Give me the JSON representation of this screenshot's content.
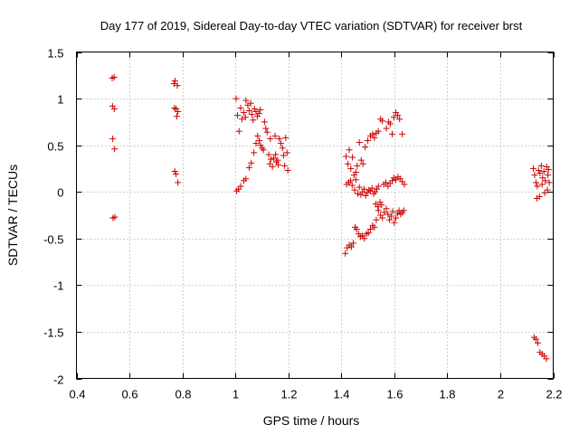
{
  "chart_data": {
    "type": "scatter",
    "title": "Day 177 of 2019, Sidereal Day-to-day VTEC variation (SDTVAR) for receiver brst",
    "xlabel": "GPS time / hours",
    "ylabel": "SDTVAR / TECUs",
    "xlim": [
      0.4,
      2.2
    ],
    "ylim": [
      -2,
      1.5
    ],
    "xticks": [
      0.4,
      0.6,
      0.8,
      1.0,
      1.2,
      1.4,
      1.6,
      1.8,
      2.0,
      2.2
    ],
    "xtick_labels": [
      "0.4",
      "0.6",
      "0.8",
      "1",
      "1.2",
      "1.4",
      "1.6",
      "1.8",
      "2",
      "2.2"
    ],
    "yticks": [
      -2,
      -1.5,
      -1,
      -0.5,
      0,
      0.5,
      1,
      1.5
    ],
    "ytick_labels": [
      "-2",
      "-1.5",
      "-1",
      "-0.5",
      "0",
      "0.5",
      "1",
      "1.5"
    ],
    "grid": true,
    "marker": "+",
    "color": "#cc0000",
    "series": [
      {
        "name": "SDTVAR",
        "points": [
          [
            0.535,
            1.22
          ],
          [
            0.542,
            1.23
          ],
          [
            0.536,
            0.92
          ],
          [
            0.543,
            0.89
          ],
          [
            0.537,
            0.57
          ],
          [
            0.544,
            0.46
          ],
          [
            0.538,
            -0.28
          ],
          [
            0.545,
            -0.27
          ],
          [
            0.768,
            1.16
          ],
          [
            0.772,
            1.19
          ],
          [
            0.781,
            1.14
          ],
          [
            0.77,
            0.9
          ],
          [
            0.776,
            0.89
          ],
          [
            0.783,
            0.86
          ],
          [
            0.779,
            0.81
          ],
          [
            0.771,
            0.22
          ],
          [
            0.776,
            0.19
          ],
          [
            0.783,
            0.1
          ],
          [
            1.003,
            1.0
          ],
          [
            1.008,
            0.82
          ],
          [
            1.014,
            0.65
          ],
          [
            1.02,
            0.9
          ],
          [
            1.025,
            0.78
          ],
          [
            1.032,
            0.85
          ],
          [
            1.038,
            0.8
          ],
          [
            1.04,
            0.98
          ],
          [
            1.047,
            0.93
          ],
          [
            1.052,
            0.87
          ],
          [
            1.058,
            0.95
          ],
          [
            1.062,
            0.83
          ],
          [
            1.067,
            0.77
          ],
          [
            1.072,
            0.89
          ],
          [
            1.078,
            0.86
          ],
          [
            1.083,
            0.81
          ],
          [
            1.089,
            0.84
          ],
          [
            1.094,
            0.88
          ],
          [
            1.07,
            0.42
          ],
          [
            1.078,
            0.52
          ],
          [
            1.084,
            0.6
          ],
          [
            1.09,
            0.55
          ],
          [
            1.095,
            0.5
          ],
          [
            1.101,
            0.47
          ],
          [
            1.106,
            0.45
          ],
          [
            1.11,
            0.75
          ],
          [
            1.115,
            0.68
          ],
          [
            1.12,
            0.64
          ],
          [
            1.126,
            0.4
          ],
          [
            1.13,
            0.3
          ],
          [
            1.134,
            0.35
          ],
          [
            1.14,
            0.27
          ],
          [
            1.145,
            0.36
          ],
          [
            1.15,
            0.6
          ],
          [
            1.155,
            0.32
          ],
          [
            1.16,
            0.34
          ],
          [
            1.166,
            0.57
          ],
          [
            1.172,
            0.52
          ],
          [
            1.178,
            0.47
          ],
          [
            1.182,
            0.39
          ],
          [
            1.186,
            0.28
          ],
          [
            1.19,
            0.58
          ],
          [
            1.195,
            0.42
          ],
          [
            1.198,
            0.23
          ],
          [
            1.162,
            0.29
          ],
          [
            1.152,
            0.4
          ],
          [
            1.132,
            0.57
          ],
          [
            1.005,
            0.01
          ],
          [
            1.012,
            0.03
          ],
          [
            1.02,
            0.06
          ],
          [
            1.032,
            0.12
          ],
          [
            1.04,
            0.14
          ],
          [
            1.052,
            0.26
          ],
          [
            1.06,
            0.31
          ],
          [
            1.415,
            -0.66
          ],
          [
            1.422,
            -0.6
          ],
          [
            1.43,
            -0.57
          ],
          [
            1.438,
            -0.59
          ],
          [
            1.445,
            -0.55
          ],
          [
            1.452,
            -0.38
          ],
          [
            1.458,
            -0.4
          ],
          [
            1.465,
            -0.45
          ],
          [
            1.472,
            -0.48
          ],
          [
            1.48,
            -0.47
          ],
          [
            1.487,
            -0.5
          ],
          [
            1.495,
            -0.45
          ],
          [
            1.502,
            -0.44
          ],
          [
            1.51,
            -0.4
          ],
          [
            1.518,
            -0.36
          ],
          [
            1.525,
            -0.38
          ],
          [
            1.532,
            -0.3
          ],
          [
            1.418,
            0.38
          ],
          [
            1.425,
            0.3
          ],
          [
            1.43,
            0.45
          ],
          [
            1.436,
            0.25
          ],
          [
            1.442,
            0.37
          ],
          [
            1.448,
            0.18
          ],
          [
            1.455,
            0.21
          ],
          [
            1.46,
            0.28
          ],
          [
            1.468,
            0.53
          ],
          [
            1.475,
            0.34
          ],
          [
            1.482,
            0.3
          ],
          [
            1.49,
            0.48
          ],
          [
            1.42,
            0.08
          ],
          [
            1.428,
            0.1
          ],
          [
            1.435,
            0.12
          ],
          [
            1.441,
            0.07
          ],
          [
            1.45,
            0.02
          ],
          [
            1.455,
            0.13
          ],
          [
            1.462,
            -0.02
          ],
          [
            1.468,
            0.05
          ],
          [
            1.474,
            -0.03
          ],
          [
            1.48,
            0.0
          ],
          [
            1.486,
            0.03
          ],
          [
            1.492,
            -0.04
          ],
          [
            1.498,
            -0.01
          ],
          [
            1.504,
            0.02
          ],
          [
            1.51,
            0.01
          ],
          [
            1.516,
            0.04
          ],
          [
            1.522,
            -0.02
          ],
          [
            1.528,
            0.0
          ],
          [
            1.534,
            0.03
          ],
          [
            1.54,
            0.06
          ],
          [
            1.5,
            0.55
          ],
          [
            1.51,
            0.6
          ],
          [
            1.518,
            0.62
          ],
          [
            1.525,
            0.58
          ],
          [
            1.532,
            0.63
          ],
          [
            1.54,
            0.65
          ],
          [
            1.548,
            0.78
          ],
          [
            1.555,
            0.76
          ],
          [
            1.57,
            0.68
          ],
          [
            1.578,
            0.75
          ],
          [
            1.585,
            0.73
          ],
          [
            1.592,
            0.62
          ],
          [
            1.598,
            0.8
          ],
          [
            1.606,
            0.85
          ],
          [
            1.613,
            0.82
          ],
          [
            1.62,
            0.78
          ],
          [
            1.63,
            0.62
          ],
          [
            1.54,
            -0.2
          ],
          [
            1.548,
            -0.25
          ],
          [
            1.555,
            -0.28
          ],
          [
            1.562,
            -0.22
          ],
          [
            1.57,
            -0.18
          ],
          [
            1.576,
            -0.24
          ],
          [
            1.582,
            -0.3
          ],
          [
            1.588,
            -0.26
          ],
          [
            1.594,
            -0.21
          ],
          [
            1.6,
            -0.33
          ],
          [
            1.606,
            -0.28
          ],
          [
            1.612,
            -0.23
          ],
          [
            1.618,
            -0.2
          ],
          [
            1.624,
            -0.24
          ],
          [
            1.63,
            -0.22
          ],
          [
            1.636,
            -0.2
          ],
          [
            1.53,
            -0.13
          ],
          [
            1.538,
            -0.16
          ],
          [
            1.546,
            -0.11
          ],
          [
            1.552,
            -0.14
          ],
          [
            1.56,
            0.08
          ],
          [
            1.568,
            0.1
          ],
          [
            1.576,
            0.06
          ],
          [
            1.584,
            0.09
          ],
          [
            1.592,
            0.12
          ],
          [
            1.598,
            0.15
          ],
          [
            1.606,
            0.13
          ],
          [
            1.614,
            0.16
          ],
          [
            1.622,
            0.14
          ],
          [
            1.63,
            0.11
          ],
          [
            1.638,
            0.08
          ],
          [
            2.125,
            0.25
          ],
          [
            2.13,
            0.18
          ],
          [
            2.135,
            0.1
          ],
          [
            2.14,
            0.06
          ],
          [
            2.145,
            0.23
          ],
          [
            2.15,
            0.2
          ],
          [
            2.155,
            0.28
          ],
          [
            2.16,
            0.15
          ],
          [
            2.165,
            0.22
          ],
          [
            2.17,
            0.12
          ],
          [
            2.175,
            0.27
          ],
          [
            2.18,
            0.18
          ],
          [
            2.185,
            0.1
          ],
          [
            2.178,
            0.02
          ],
          [
            2.168,
            -0.01
          ],
          [
            2.158,
            0.08
          ],
          [
            2.148,
            -0.05
          ],
          [
            2.138,
            -0.07
          ],
          [
            2.182,
            0.24
          ],
          [
            2.128,
            -1.56
          ],
          [
            2.135,
            -1.58
          ],
          [
            2.142,
            -1.62
          ],
          [
            2.15,
            -1.72
          ],
          [
            2.158,
            -1.74
          ],
          [
            2.166,
            -1.76
          ],
          [
            2.174,
            -1.79
          ]
        ]
      }
    ]
  }
}
